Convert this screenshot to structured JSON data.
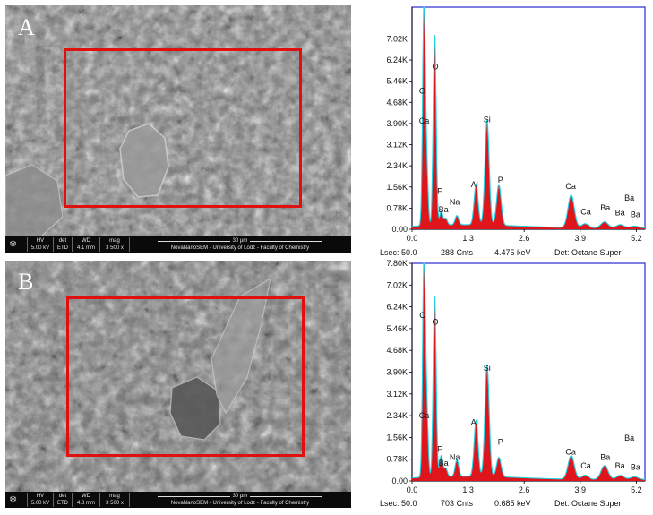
{
  "panels": [
    {
      "letter": "A",
      "sem": {
        "hv_label": "HV",
        "hv": "5.00 kV",
        "det_label": "det",
        "det": "ETD",
        "wd_label": "WD",
        "wd": "4.1 mm",
        "mag_label": "mag",
        "mag": "3 500 x",
        "scale": "30 µm",
        "caption": "NovaNanoSEM - University of Lodz - Faculty of Chemistry"
      },
      "eds_footer": {
        "lsec": "Lsec: 50.0",
        "cnts": "288 Cnts",
        "kev": "4.475 keV",
        "det": "Det: Octane Super"
      }
    },
    {
      "letter": "B",
      "sem": {
        "hv_label": "HV",
        "hv": "5.00 kV",
        "det_label": "det",
        "det": "ETD",
        "wd_label": "WD",
        "wd": "4.8 mm",
        "mag_label": "mag",
        "mag": "3 500 x",
        "scale": "30 µm",
        "caption": "NovaNanoSEM - University of Lodz - Faculty of Chemistry"
      },
      "eds_footer": {
        "lsec": "Lsec: 50.0",
        "cnts": "703 Cnts",
        "kev": "0.685 keV",
        "det": "Det: Octane Super"
      }
    }
  ],
  "chart_data": [
    {
      "type": "area",
      "title": "",
      "xlabel": "",
      "ylabel": "",
      "xlim": [
        0,
        5.4
      ],
      "ylim": [
        0,
        8.19
      ],
      "x_ticks": [
        "0.0",
        "1.3",
        "2.6",
        "3.9",
        "5.2"
      ],
      "x_tick_values": [
        0.0,
        1.3,
        2.6,
        3.9,
        5.2
      ],
      "y_ticks": [
        "0.00",
        "0.78K",
        "1.56K",
        "2.34K",
        "3.12K",
        "3.90K",
        "4.68K",
        "5.46K",
        "6.24K",
        "7.02K"
      ],
      "y_tick_values": [
        0.0,
        0.78,
        1.56,
        2.34,
        3.12,
        3.9,
        4.68,
        5.46,
        6.24,
        7.02
      ],
      "peaks": [
        {
          "x": 0.277,
          "y": 8.15
        },
        {
          "x": 0.341,
          "y": 2.0
        },
        {
          "x": 0.525,
          "y": 7.05
        },
        {
          "x": 0.677,
          "y": 0.5
        },
        {
          "x": 0.78,
          "y": 0.25
        },
        {
          "x": 1.041,
          "y": 0.34
        },
        {
          "x": 1.486,
          "y": 1.5
        },
        {
          "x": 1.74,
          "y": 3.85
        },
        {
          "x": 2.013,
          "y": 1.5
        },
        {
          "x": 3.69,
          "y": 1.2
        },
        {
          "x": 4.012,
          "y": 0.15
        },
        {
          "x": 4.465,
          "y": 0.22
        },
        {
          "x": 4.828,
          "y": 0.12
        },
        {
          "x": 5.156,
          "y": 0.07
        }
      ],
      "peak_labels": [
        {
          "text": "C",
          "x": 0.23,
          "y": 5.0
        },
        {
          "text": "O",
          "x": 0.54,
          "y": 5.9
        },
        {
          "text": "Ca",
          "x": 0.28,
          "y": 3.9
        },
        {
          "text": "F",
          "x": 0.64,
          "y": 1.3
        },
        {
          "text": "Ba",
          "x": 0.73,
          "y": 0.62
        },
        {
          "text": "Na",
          "x": 0.99,
          "y": 0.9
        },
        {
          "text": "Al",
          "x": 1.45,
          "y": 1.55
        },
        {
          "text": "Si",
          "x": 1.74,
          "y": 3.95
        },
        {
          "text": "P",
          "x": 2.05,
          "y": 1.72
        },
        {
          "text": "Ca",
          "x": 3.68,
          "y": 1.48
        },
        {
          "text": "Ca",
          "x": 4.03,
          "y": 0.55
        },
        {
          "text": "Ba",
          "x": 4.48,
          "y": 0.7
        },
        {
          "text": "Ba",
          "x": 5.04,
          "y": 1.05
        },
        {
          "text": "Ba",
          "x": 4.82,
          "y": 0.52
        },
        {
          "text": "Ba",
          "x": 5.18,
          "y": 0.45
        }
      ]
    },
    {
      "type": "area",
      "title": "",
      "xlabel": "",
      "ylabel": "",
      "xlim": [
        0,
        5.4
      ],
      "ylim": [
        0,
        7.8
      ],
      "x_ticks": [
        "0.0",
        "1.3",
        "2.6",
        "3.9",
        "5.2"
      ],
      "x_tick_values": [
        0.0,
        1.3,
        2.6,
        3.9,
        5.2
      ],
      "y_ticks": [
        "0.00",
        "0.78K",
        "1.56K",
        "2.34K",
        "3.12K",
        "3.90K",
        "4.68K",
        "5.46K",
        "6.24K",
        "7.02K",
        "7.80K"
      ],
      "y_tick_values": [
        0.0,
        0.78,
        1.56,
        2.34,
        3.12,
        3.9,
        4.68,
        5.46,
        6.24,
        7.02,
        7.8
      ],
      "peaks": [
        {
          "x": 0.277,
          "y": 7.8
        },
        {
          "x": 0.341,
          "y": 2.3
        },
        {
          "x": 0.525,
          "y": 6.5
        },
        {
          "x": 0.677,
          "y": 0.75
        },
        {
          "x": 0.78,
          "y": 0.3
        },
        {
          "x": 1.041,
          "y": 0.6
        },
        {
          "x": 1.486,
          "y": 2.0
        },
        {
          "x": 1.74,
          "y": 4.0
        },
        {
          "x": 2.013,
          "y": 0.7
        },
        {
          "x": 3.69,
          "y": 0.85
        },
        {
          "x": 4.012,
          "y": 0.15
        },
        {
          "x": 4.465,
          "y": 0.5
        },
        {
          "x": 4.828,
          "y": 0.15
        },
        {
          "x": 5.156,
          "y": 0.1
        }
      ],
      "peak_labels": [
        {
          "text": "C",
          "x": 0.24,
          "y": 5.85
        },
        {
          "text": "O",
          "x": 0.54,
          "y": 5.6
        },
        {
          "text": "Ca",
          "x": 0.28,
          "y": 2.25
        },
        {
          "text": "F",
          "x": 0.64,
          "y": 1.05
        },
        {
          "text": "Ba",
          "x": 0.73,
          "y": 0.55
        },
        {
          "text": "Na",
          "x": 0.99,
          "y": 0.75
        },
        {
          "text": "Al",
          "x": 1.45,
          "y": 2.0
        },
        {
          "text": "Si",
          "x": 1.74,
          "y": 3.95
        },
        {
          "text": "P",
          "x": 2.05,
          "y": 1.3
        },
        {
          "text": "Ca",
          "x": 3.68,
          "y": 0.95
        },
        {
          "text": "Ca",
          "x": 4.03,
          "y": 0.45
        },
        {
          "text": "Ba",
          "x": 4.48,
          "y": 0.75
        },
        {
          "text": "Ba",
          "x": 5.04,
          "y": 1.45
        },
        {
          "text": "Ba",
          "x": 4.82,
          "y": 0.45
        },
        {
          "text": "Ba",
          "x": 5.18,
          "y": 0.4
        }
      ]
    }
  ]
}
